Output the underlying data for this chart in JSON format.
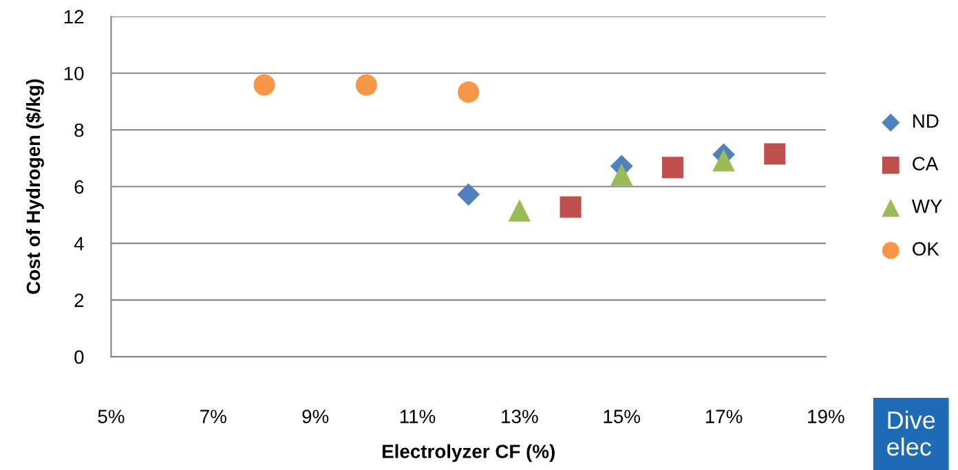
{
  "chart_data": {
    "type": "scatter",
    "xlabel": "Electrolyzer CF (%)",
    "ylabel": "Cost of Hydrogen ($/kg)",
    "series": [
      {
        "name": "ND",
        "color": "#4f81bd",
        "marker": "diamond",
        "x": [
          12,
          15,
          17
        ],
        "values": [
          5.72,
          6.72,
          7.13
        ]
      },
      {
        "name": "CA",
        "color": "#c0504d",
        "marker": "square",
        "x": [
          14,
          16,
          18
        ],
        "values": [
          5.28,
          6.67,
          7.15
        ]
      },
      {
        "name": "WY",
        "color": "#9bbb59",
        "marker": "triangle",
        "x": [
          13,
          15,
          17
        ],
        "values": [
          5.16,
          6.42,
          6.93
        ]
      },
      {
        "name": "OK",
        "color": "#f79646",
        "marker": "circle",
        "x": [
          8,
          10,
          12
        ],
        "values": [
          9.58,
          9.58,
          9.33
        ]
      }
    ],
    "xlim": [
      5,
      19
    ],
    "xticks": [
      {
        "value": 5,
        "label": "5%"
      },
      {
        "value": 7,
        "label": "7%"
      },
      {
        "value": 9,
        "label": "9%"
      },
      {
        "value": 11,
        "label": "11%"
      },
      {
        "value": 13,
        "label": "13%"
      },
      {
        "value": 15,
        "label": "15%"
      },
      {
        "value": 17,
        "label": "17%"
      },
      {
        "value": 19,
        "label": "19%"
      }
    ],
    "ylim": [
      0,
      12
    ],
    "yticks": [
      0,
      2,
      4,
      6,
      8,
      10,
      12
    ],
    "grid": "y",
    "legend": "right",
    "annotations": [
      "Dive\nelec"
    ]
  }
}
